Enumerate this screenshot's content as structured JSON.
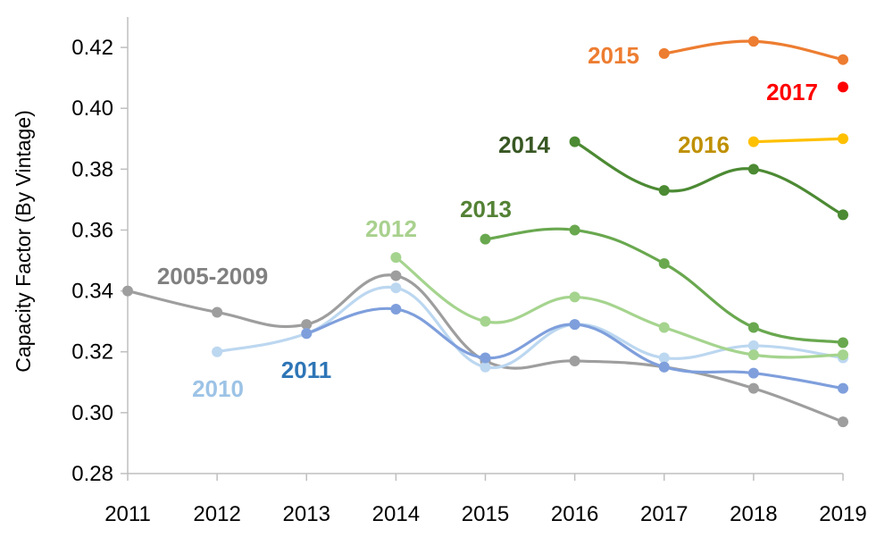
{
  "chart_data": {
    "type": "line",
    "ylabel": "Capacity Factor (By Vintage)",
    "xlabel": "",
    "title": "",
    "x": [
      2011,
      2012,
      2013,
      2014,
      2015,
      2016,
      2017,
      2018,
      2019
    ],
    "xlim": [
      2011,
      2019
    ],
    "ylim": [
      0.28,
      0.43
    ],
    "yticks": [
      "0.28",
      "0.30",
      "0.32",
      "0.34",
      "0.36",
      "0.38",
      "0.40",
      "0.42"
    ],
    "grid": false,
    "series": [
      {
        "name": "2005-2009",
        "color": "#9e9e9e",
        "points": [
          [
            2011,
            0.34
          ],
          [
            2012,
            0.333
          ],
          [
            2013,
            0.329
          ],
          [
            2014,
            0.345
          ],
          [
            2015,
            0.317
          ],
          [
            2016,
            0.317
          ],
          [
            2017,
            0.315
          ],
          [
            2018,
            0.308
          ],
          [
            2019,
            0.297
          ]
        ]
      },
      {
        "name": "2010",
        "color": "#bcd7f0",
        "points": [
          [
            2012,
            0.32
          ],
          [
            2013,
            0.326
          ],
          [
            2014,
            0.341
          ],
          [
            2015,
            0.315
          ],
          [
            2016,
            0.329
          ],
          [
            2017,
            0.318
          ],
          [
            2018,
            0.322
          ],
          [
            2019,
            0.318
          ]
        ]
      },
      {
        "name": "2011",
        "color": "#7f9fdc",
        "points": [
          [
            2013,
            0.326
          ],
          [
            2014,
            0.334
          ],
          [
            2015,
            0.318
          ],
          [
            2016,
            0.329
          ],
          [
            2017,
            0.315
          ],
          [
            2018,
            0.313
          ],
          [
            2019,
            0.308
          ]
        ]
      },
      {
        "name": "2012",
        "color": "#a5d48e",
        "points": [
          [
            2014,
            0.351
          ],
          [
            2015,
            0.33
          ],
          [
            2016,
            0.338
          ],
          [
            2017,
            0.328
          ],
          [
            2018,
            0.319
          ],
          [
            2019,
            0.319
          ]
        ]
      },
      {
        "name": "2013",
        "color": "#69a84f",
        "points": [
          [
            2015,
            0.357
          ],
          [
            2016,
            0.36
          ],
          [
            2017,
            0.349
          ],
          [
            2018,
            0.328
          ],
          [
            2019,
            0.323
          ]
        ]
      },
      {
        "name": "2014",
        "color": "#4c8a33",
        "points": [
          [
            2016,
            0.389
          ],
          [
            2017,
            0.373
          ],
          [
            2018,
            0.38
          ],
          [
            2019,
            0.365
          ]
        ]
      },
      {
        "name": "2015",
        "color": "#ed7d31",
        "points": [
          [
            2017,
            0.418
          ],
          [
            2018,
            0.422
          ],
          [
            2019,
            0.416
          ]
        ]
      },
      {
        "name": "2016",
        "color": "#ffc000",
        "points": [
          [
            2018,
            0.389
          ],
          [
            2019,
            0.39
          ]
        ]
      },
      {
        "name": "2017",
        "color": "#ff0000",
        "points": [
          [
            2019,
            0.407
          ]
        ]
      }
    ],
    "label_colors": {
      "2005-2009": "#808080",
      "2010": "#9dc3e6",
      "2011": "#2e75b6",
      "2012": "#a9d18e",
      "2013": "#548235",
      "2014": "#385723",
      "2015": "#ed7d31",
      "2016": "#bf9000",
      "2017": "#ff0000"
    }
  }
}
